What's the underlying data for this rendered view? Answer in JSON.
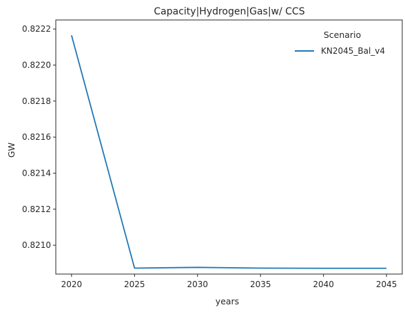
{
  "chart_data": {
    "type": "line",
    "title": "Capacity|Hydrogen|Gas|w/ CCS",
    "xlabel": "years",
    "ylabel": "GW",
    "x": [
      2020,
      2025,
      2030,
      2035,
      2040,
      2045
    ],
    "x_ticks": [
      "2020",
      "2025",
      "2030",
      "2035",
      "2040",
      "2045"
    ],
    "y_ticks": [
      "0.8210",
      "0.8212",
      "0.8214",
      "0.8216",
      "0.8218",
      "0.8220",
      "0.8222"
    ],
    "y_tick_values": [
      0.821,
      0.8212,
      0.8214,
      0.8216,
      0.8218,
      0.822,
      0.8222
    ],
    "xlim": [
      2018.75,
      2046.25
    ],
    "ylim": [
      0.82084,
      0.82225
    ],
    "grid": false,
    "legend": {
      "title": "Scenario",
      "placement": "top-right"
    },
    "series": [
      {
        "name": "KN2045_Bal_v4",
        "color": "#1f77b4",
        "values": [
          0.822165,
          0.820873,
          0.820877,
          0.820873,
          0.820872,
          0.820872
        ]
      }
    ]
  }
}
